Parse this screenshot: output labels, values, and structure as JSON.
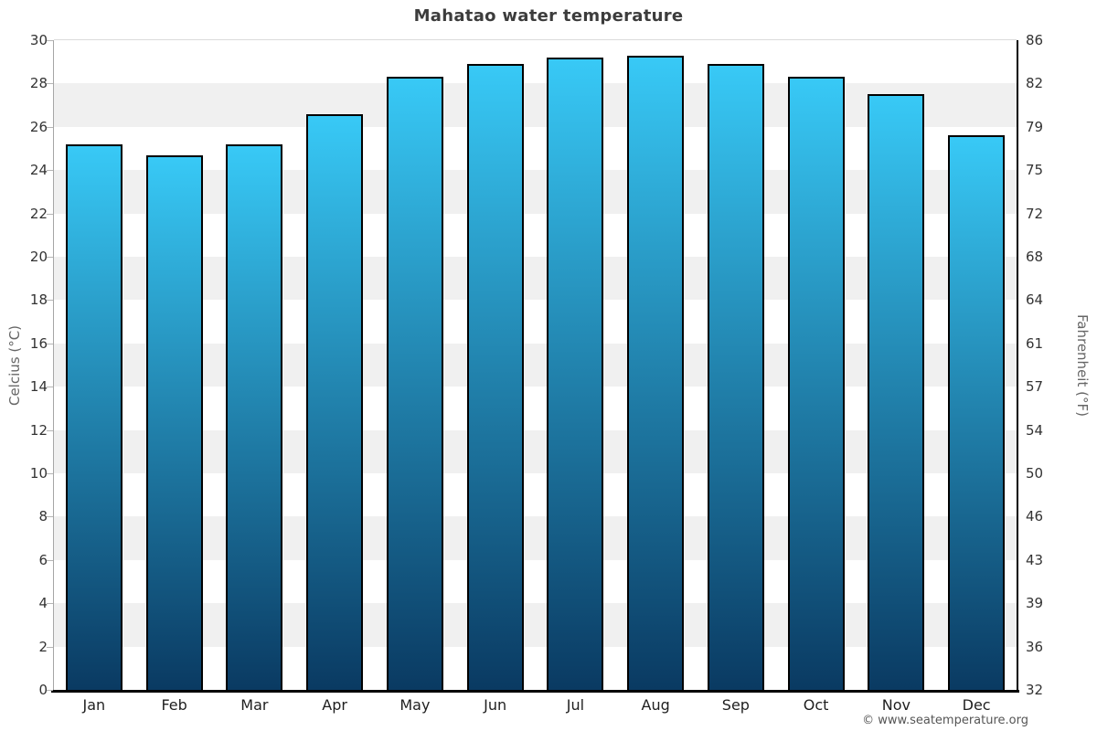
{
  "page": {
    "title": "Mahatao water temperature",
    "copyright": "© www.seatemperature.org"
  },
  "chart_data": {
    "type": "bar",
    "title": "Mahatao water temperature",
    "categories": [
      "Jan",
      "Feb",
      "Mar",
      "Apr",
      "May",
      "Jun",
      "Jul",
      "Aug",
      "Sep",
      "Oct",
      "Nov",
      "Dec"
    ],
    "values": [
      25.2,
      24.7,
      25.2,
      26.6,
      28.3,
      28.9,
      29.2,
      29.3,
      28.9,
      28.3,
      27.5,
      25.6
    ],
    "values_unit": "°C",
    "ylabel_left": "Celcius (°C)",
    "ylabel_right": "Fahrenheit (°F)",
    "ylim_celsius": [
      0,
      30
    ],
    "yticks_celsius": [
      30,
      28,
      26,
      24,
      22,
      20,
      18,
      16,
      14,
      12,
      10,
      8,
      6,
      4,
      2,
      0
    ],
    "yticks_fahrenheit": [
      86,
      82,
      79,
      75,
      72,
      68,
      64,
      61,
      57,
      54,
      50,
      46,
      43,
      39,
      36,
      32
    ],
    "legend": "none",
    "grid": "alternating horizontal bands every 2°C",
    "colors": {
      "bar_gradient_top": "#38C9F6",
      "bar_gradient_bottom": "#0A3A62",
      "bar_border": "#000000",
      "band_white": "#FFFFFF",
      "band_gray": "#F0F0F0",
      "axis_line": "#000000",
      "left_spine": "#A6A6A6",
      "tick_label": "#333333"
    }
  }
}
